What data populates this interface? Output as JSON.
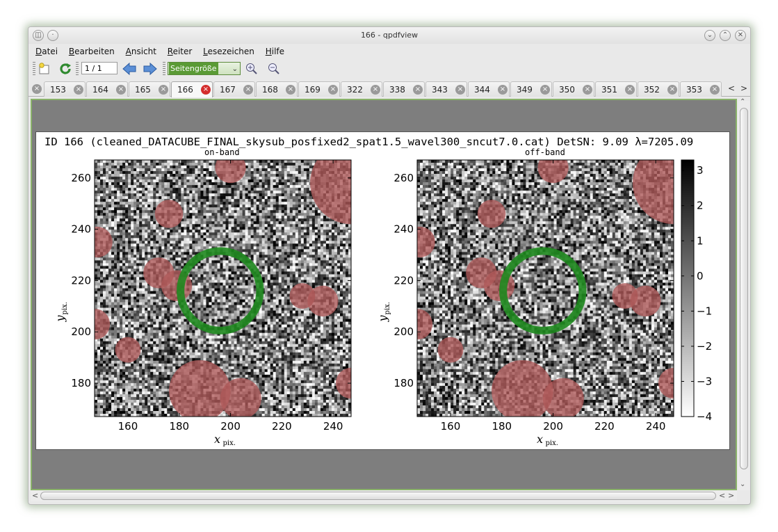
{
  "window": {
    "title": "166 - qpdfview"
  },
  "menu": [
    "Datei",
    "Bearbeiten",
    "Ansicht",
    "Reiter",
    "Lesezeichen",
    "Hilfe"
  ],
  "toolbar": {
    "page_value": "1 / 1",
    "zoom_value": "Seitengröße",
    "icons": [
      "open-icon",
      "refresh-icon",
      "previous-page-icon",
      "next-page-icon",
      "zoom-in-icon",
      "zoom-out-icon"
    ]
  },
  "tabs": [
    {
      "label": "153",
      "active": false
    },
    {
      "label": "164",
      "active": false
    },
    {
      "label": "165",
      "active": false
    },
    {
      "label": "166",
      "active": true
    },
    {
      "label": "167",
      "active": false
    },
    {
      "label": "168",
      "active": false
    },
    {
      "label": "169",
      "active": false
    },
    {
      "label": "322",
      "active": false
    },
    {
      "label": "338",
      "active": false
    },
    {
      "label": "343",
      "active": false
    },
    {
      "label": "344",
      "active": false
    },
    {
      "label": "349",
      "active": false
    },
    {
      "label": "350",
      "active": false
    },
    {
      "label": "351",
      "active": false
    },
    {
      "label": "352",
      "active": false
    },
    {
      "label": "353",
      "active": false
    }
  ],
  "colors": {
    "accent": "#5a9a35",
    "mask": "#b05a5a",
    "aperture": "#1f8a1f",
    "active_tab_close": "#d42d2d"
  },
  "figure": {
    "title": "ID 166 (cleaned_DATACUBE_FINAL_skysub_posfixed2_spat1.5_wavel300_sncut7.0.cat) DetSN: 9.09 λ=7205.09",
    "panels": [
      "on-band",
      "off-band"
    ]
  },
  "chart_data": {
    "type": "heatmap",
    "panels": [
      {
        "title": "on-band",
        "xlabel": "x",
        "xlabel_sub": "pix.",
        "ylabel": "y",
        "ylabel_sub": "pix.",
        "xlim": [
          147,
          247
        ],
        "ylim": [
          167,
          267
        ],
        "xticks": [
          160,
          180,
          200,
          220,
          240
        ],
        "yticks": [
          180,
          200,
          220,
          240,
          260
        ],
        "aperture": {
          "x": 196,
          "y": 216,
          "r_inner": 14,
          "r_outer": 17
        },
        "masks": [
          {
            "x": 176,
            "y": 246,
            "r": 5.5
          },
          {
            "x": 148,
            "y": 235,
            "r": 6
          },
          {
            "x": 172,
            "y": 223,
            "r": 6
          },
          {
            "x": 179,
            "y": 218,
            "r": 6
          },
          {
            "x": 147,
            "y": 203,
            "r": 6
          },
          {
            "x": 160,
            "y": 193,
            "r": 5
          },
          {
            "x": 188,
            "y": 177,
            "r": 12
          },
          {
            "x": 204,
            "y": 174,
            "r": 8
          },
          {
            "x": 236,
            "y": 212,
            "r": 6
          },
          {
            "x": 228,
            "y": 214,
            "r": 5
          },
          {
            "x": 200,
            "y": 264,
            "r": 6
          },
          {
            "x": 247,
            "y": 258,
            "r": 16
          },
          {
            "x": 247,
            "y": 180,
            "r": 6
          }
        ]
      },
      {
        "title": "off-band",
        "xlabel": "x",
        "xlabel_sub": "pix.",
        "ylabel": "y",
        "ylabel_sub": "pix.",
        "xlim": [
          147,
          247
        ],
        "ylim": [
          167,
          267
        ],
        "xticks": [
          160,
          180,
          200,
          220,
          240
        ],
        "yticks": [
          180,
          200,
          220,
          240,
          260
        ],
        "aperture": {
          "x": 196,
          "y": 216,
          "r_inner": 14,
          "r_outer": 17
        },
        "masks": [
          {
            "x": 176,
            "y": 246,
            "r": 5.5
          },
          {
            "x": 148,
            "y": 235,
            "r": 6
          },
          {
            "x": 172,
            "y": 223,
            "r": 6
          },
          {
            "x": 179,
            "y": 218,
            "r": 6
          },
          {
            "x": 147,
            "y": 203,
            "r": 6
          },
          {
            "x": 160,
            "y": 193,
            "r": 5
          },
          {
            "x": 188,
            "y": 177,
            "r": 12
          },
          {
            "x": 204,
            "y": 174,
            "r": 8
          },
          {
            "x": 236,
            "y": 212,
            "r": 6
          },
          {
            "x": 228,
            "y": 214,
            "r": 5
          },
          {
            "x": 200,
            "y": 264,
            "r": 6
          },
          {
            "x": 247,
            "y": 258,
            "r": 16
          },
          {
            "x": 247,
            "y": 180,
            "r": 6
          }
        ]
      }
    ],
    "colorbar": {
      "range": [
        -4,
        3.3
      ],
      "ticks": [
        3,
        2,
        1,
        0,
        -1,
        -2,
        -3,
        -4
      ],
      "tick_labels": [
        "3",
        "2",
        "1",
        "0",
        "−1",
        "−2",
        "−3",
        "−4"
      ],
      "colormap": "gray_r"
    }
  }
}
